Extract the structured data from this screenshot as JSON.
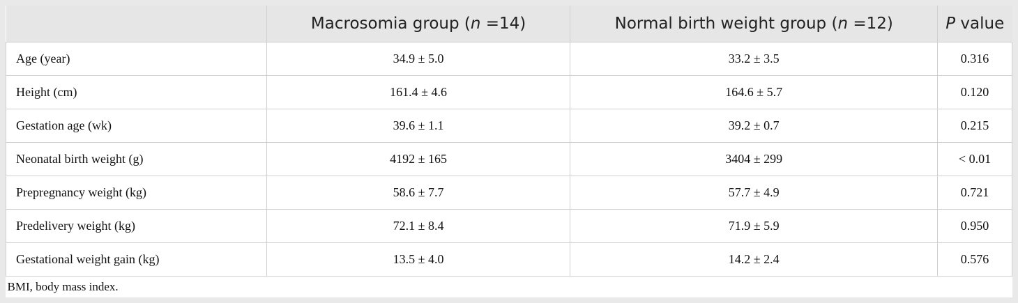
{
  "table": {
    "header": [
      {},
      {
        "before": "Macrosomia group (",
        "italic": "n",
        "after": " =14)"
      },
      {
        "before": "Normal birth weight group (",
        "italic": "n",
        "after": " =12)"
      },
      {
        "italic": "P",
        "after": " value"
      }
    ],
    "rows": [
      [
        "Age (year)",
        "34.9 ± 5.0",
        "33.2 ± 3.5",
        "0.316"
      ],
      [
        "Height (cm)",
        "161.4 ± 4.6",
        "164.6 ± 5.7",
        "0.120"
      ],
      [
        "Gestation age (wk)",
        "39.6 ± 1.1",
        "39.2 ± 0.7",
        "0.215"
      ],
      [
        "Neonatal birth weight (g)",
        "4192 ± 165",
        "3404 ± 299",
        "< 0.01"
      ],
      [
        "Prepregnancy weight (kg)",
        "58.6 ± 7.7",
        "57.7 ± 4.9",
        "0.721"
      ],
      [
        "Predelivery weight (kg)",
        "72.1 ± 8.4",
        "71.9 ± 5.9",
        "0.950"
      ],
      [
        "Gestational weight gain (kg)",
        "13.5 ± 4.0",
        "14.2 ± 2.4",
        "0.576"
      ]
    ],
    "footnote": "BMI, body mass index."
  }
}
